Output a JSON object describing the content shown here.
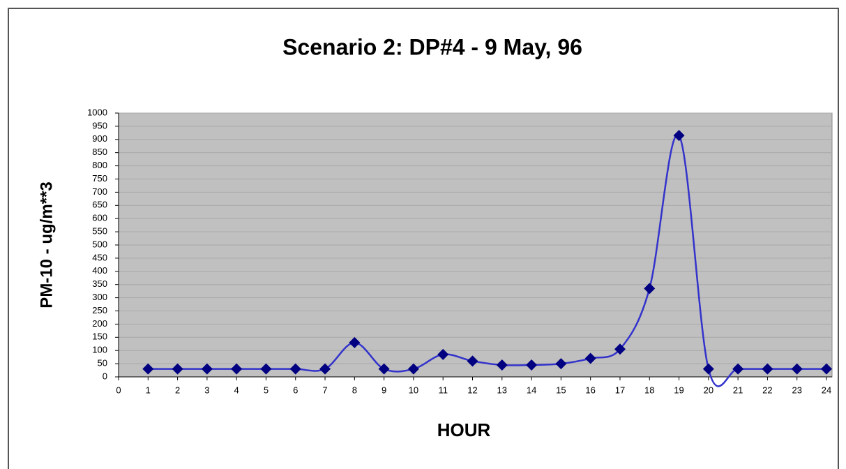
{
  "chart_data": {
    "type": "line",
    "title": "Scenario 2: DP#4 - 9 May, 96",
    "x_label": "HOUR",
    "y_label": "PM-10 - ug/m**3",
    "x": [
      1,
      2,
      3,
      4,
      5,
      6,
      7,
      8,
      9,
      10,
      11,
      12,
      13,
      14,
      15,
      16,
      17,
      18,
      19,
      20,
      21,
      22,
      23,
      24
    ],
    "series": [
      {
        "name": "PM-10",
        "color": "#3333cc",
        "marker_color": "#000080",
        "values": [
          30,
          30,
          30,
          30,
          30,
          30,
          30,
          130,
          30,
          30,
          85,
          60,
          45,
          45,
          50,
          70,
          105,
          335,
          915,
          30,
          30,
          30,
          30,
          30
        ]
      }
    ],
    "xlim": [
      0,
      24
    ],
    "xticks": [
      0,
      1,
      2,
      3,
      4,
      5,
      6,
      7,
      8,
      9,
      10,
      11,
      12,
      13,
      14,
      15,
      16,
      17,
      18,
      19,
      20,
      21,
      22,
      23,
      24
    ],
    "ylim": [
      0,
      1000
    ],
    "yticks": [
      0,
      50,
      100,
      150,
      200,
      250,
      300,
      350,
      400,
      450,
      500,
      550,
      600,
      650,
      700,
      750,
      800,
      850,
      900,
      950,
      1000
    ],
    "grid": true,
    "smooth": true
  }
}
